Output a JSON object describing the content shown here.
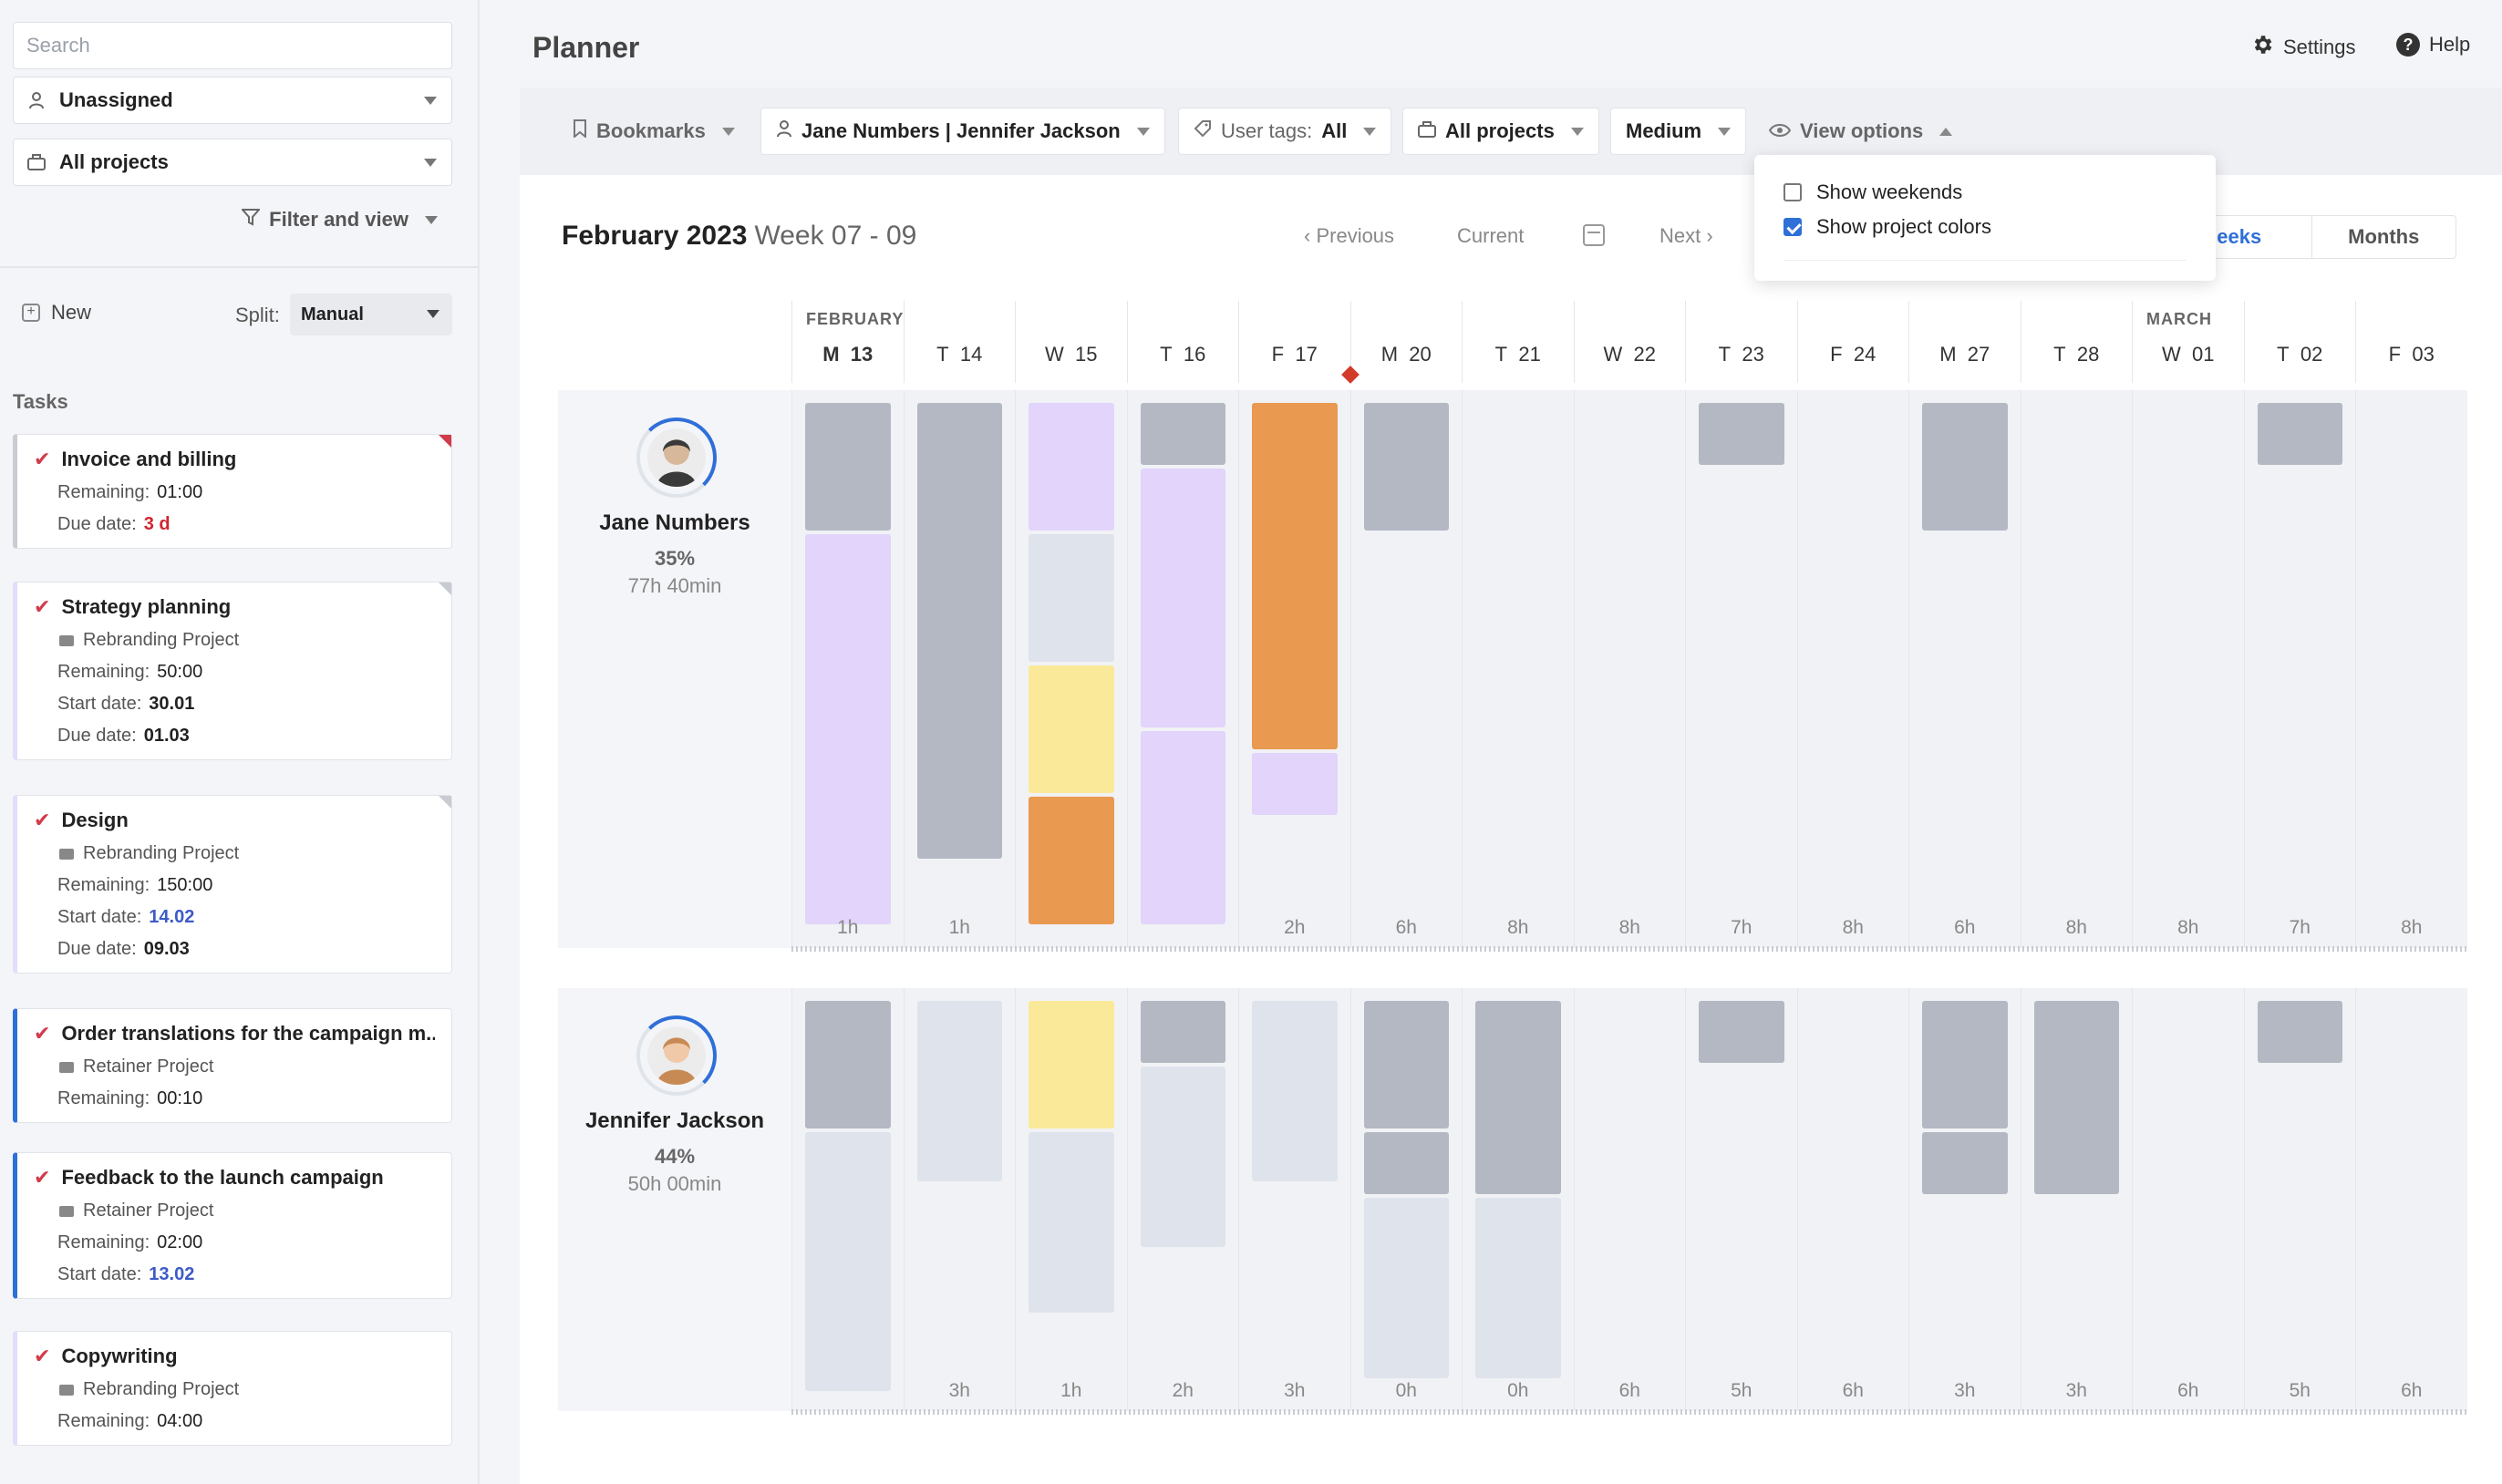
{
  "sidebar": {
    "search_placeholder": "Search",
    "assignee": "Unassigned",
    "projects": "All projects",
    "filter_label": "Filter and view",
    "new_label": "New",
    "split_label": "Split:",
    "split_value": "Manual",
    "tasks_title": "Tasks",
    "tasks": [
      {
        "title": "Invoice and billing",
        "corner": "red",
        "border": "#c9ccd3",
        "rows": [
          {
            "k": "Remaining:",
            "v": "01:00",
            "s": ""
          },
          {
            "k": "Due date:",
            "v": "3 d",
            "s": "red"
          }
        ]
      },
      {
        "title": "Strategy planning",
        "corner": "grey",
        "border": "#e3dcfb",
        "project": "Rebranding Project",
        "rows": [
          {
            "k": "Remaining:",
            "v": "50:00",
            "s": ""
          },
          {
            "k": "Start date:",
            "v": "30.01",
            "s": "bold"
          },
          {
            "k": "Due date:",
            "v": "01.03",
            "s": "bold"
          }
        ]
      },
      {
        "title": "Design",
        "corner": "grey",
        "border": "#e3dcfb",
        "project": "Rebranding Project",
        "rows": [
          {
            "k": "Remaining:",
            "v": "150:00",
            "s": ""
          },
          {
            "k": "Start date:",
            "v": "14.02",
            "s": "blue"
          },
          {
            "k": "Due date:",
            "v": "09.03",
            "s": "bold"
          }
        ]
      },
      {
        "title": "Order translations for the campaign m...",
        "corner": "",
        "border": "#2f6fd8",
        "project": "Retainer Project",
        "rows": [
          {
            "k": "Remaining:",
            "v": "00:10",
            "s": ""
          }
        ]
      },
      {
        "title": "Feedback to the launch campaign",
        "corner": "",
        "border": "#2f6fd8",
        "project": "Retainer Project",
        "rows": [
          {
            "k": "Remaining:",
            "v": "02:00",
            "s": ""
          },
          {
            "k": "Start date:",
            "v": "13.02",
            "s": "blue"
          }
        ]
      },
      {
        "title": "Copywriting",
        "corner": "",
        "border": "#e3dcfb",
        "project": "Rebranding Project",
        "rows": [
          {
            "k": "Remaining:",
            "v": "04:00",
            "s": ""
          }
        ]
      }
    ]
  },
  "header": {
    "title": "Planner",
    "settings": "Settings",
    "help": "Help"
  },
  "toolbar": {
    "bookmarks": "Bookmarks",
    "users": "Jane Numbers | Jennifer Jackson",
    "user_tags_label": "User tags:",
    "user_tags_value": "All",
    "projects": "All projects",
    "size": "Medium",
    "view_options": "View options"
  },
  "view_menu": {
    "show_weekends": "Show weekends",
    "show_weekends_checked": false,
    "show_project_colors": "Show project colors",
    "show_project_colors_checked": true
  },
  "calendar": {
    "month": "February 2023",
    "weeks": "Week 07 - 09",
    "previous": "Previous",
    "current": "Current",
    "next": "Next",
    "tab_weeks": "eeks",
    "tab_months": "Months",
    "month_feb": "FEBRUARY",
    "month_mar": "MARCH",
    "days": [
      {
        "d": "M",
        "n": "13",
        "bold": true
      },
      {
        "d": "T",
        "n": "14"
      },
      {
        "d": "W",
        "n": "15"
      },
      {
        "d": "T",
        "n": "16"
      },
      {
        "d": "F",
        "n": "17"
      },
      {
        "d": "M",
        "n": "20"
      },
      {
        "d": "T",
        "n": "21"
      },
      {
        "d": "W",
        "n": "22"
      },
      {
        "d": "T",
        "n": "23"
      },
      {
        "d": "F",
        "n": "24"
      },
      {
        "d": "M",
        "n": "27"
      },
      {
        "d": "T",
        "n": "28"
      },
      {
        "d": "W",
        "n": "01"
      },
      {
        "d": "T",
        "n": "02"
      },
      {
        "d": "F",
        "n": "03"
      }
    ]
  },
  "colors": {
    "grey": "#b3b8c3",
    "light": "#dfe3ec",
    "purple": "#e2d4fb",
    "yellow": "#fbe99a",
    "orange": "#e99950",
    "accent": "#2f6fd8"
  },
  "people": [
    {
      "name": "Jane Numbers",
      "pct": "35%",
      "hours": "77h 40min",
      "caps": [
        "1h",
        "1h",
        "",
        "",
        "2h",
        "6h",
        "8h",
        "8h",
        "7h",
        "8h",
        "6h",
        "8h",
        "8h",
        "7h",
        "8h"
      ],
      "blocks": [
        [
          [
            "grey",
            1
          ],
          [
            "purple",
            3
          ]
        ],
        [
          [
            "grey",
            3.5
          ]
        ],
        [
          [
            "purple",
            1
          ],
          [
            "light",
            1
          ],
          [
            "yellow",
            1
          ],
          [
            "orange",
            1
          ]
        ],
        [
          [
            "grey",
            0.5
          ],
          [
            "purple",
            2
          ],
          [
            "purple",
            1.5
          ]
        ],
        [
          [
            "orange",
            2.67
          ],
          [
            "purple",
            0.5
          ]
        ],
        [
          [
            "grey",
            1
          ]
        ],
        [],
        [],
        [
          [
            "grey",
            0.5
          ]
        ],
        [],
        [
          [
            "grey",
            1
          ]
        ],
        [],
        [],
        [
          [
            "grey",
            0.5
          ]
        ],
        []
      ]
    },
    {
      "name": "Jennifer Jackson",
      "pct": "44%",
      "hours": "50h 00min",
      "caps": [
        "",
        "3h",
        "1h",
        "2h",
        "3h",
        "0h",
        "0h",
        "6h",
        "5h",
        "6h",
        "3h",
        "3h",
        "6h",
        "5h",
        "6h"
      ],
      "blocks": [
        [
          [
            "grey",
            1
          ],
          [
            "light",
            2
          ]
        ],
        [
          [
            "light",
            1.4
          ]
        ],
        [
          [
            "yellow",
            1
          ],
          [
            "light",
            1.4
          ]
        ],
        [
          [
            "grey",
            0.5
          ],
          [
            "light",
            1.4
          ]
        ],
        [
          [
            "light",
            1.4
          ]
        ],
        [
          [
            "grey",
            1
          ],
          [
            "grey",
            0.5
          ],
          [
            "light",
            1.4
          ]
        ],
        [
          [
            "grey",
            1.5
          ],
          [
            "light",
            1.4
          ]
        ],
        [],
        [
          [
            "grey",
            0.5
          ]
        ],
        [],
        [
          [
            "grey",
            1
          ],
          [
            "grey",
            0.5
          ]
        ],
        [
          [
            "grey",
            1.5
          ]
        ],
        [],
        [
          [
            "grey",
            0.5
          ]
        ],
        []
      ]
    }
  ]
}
